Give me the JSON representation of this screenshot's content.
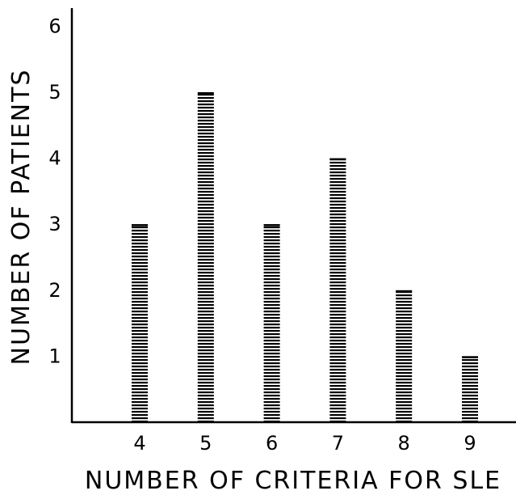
{
  "chart_data": {
    "type": "bar",
    "title": "",
    "xlabel": "NUMBER OF CRITERIA FOR SLE",
    "ylabel": "NUMBER OF PATIENTS",
    "categories": [
      "4",
      "5",
      "6",
      "7",
      "8",
      "9"
    ],
    "values": [
      3,
      5,
      3,
      4,
      2,
      1
    ],
    "ylim": [
      0,
      6
    ],
    "yticks": [
      "1",
      "2",
      "3",
      "4",
      "5",
      "6"
    ],
    "grid": false,
    "bar_style": "horizontal-hatched",
    "colors": {
      "ink": "#000000",
      "background": "#ffffff"
    }
  }
}
